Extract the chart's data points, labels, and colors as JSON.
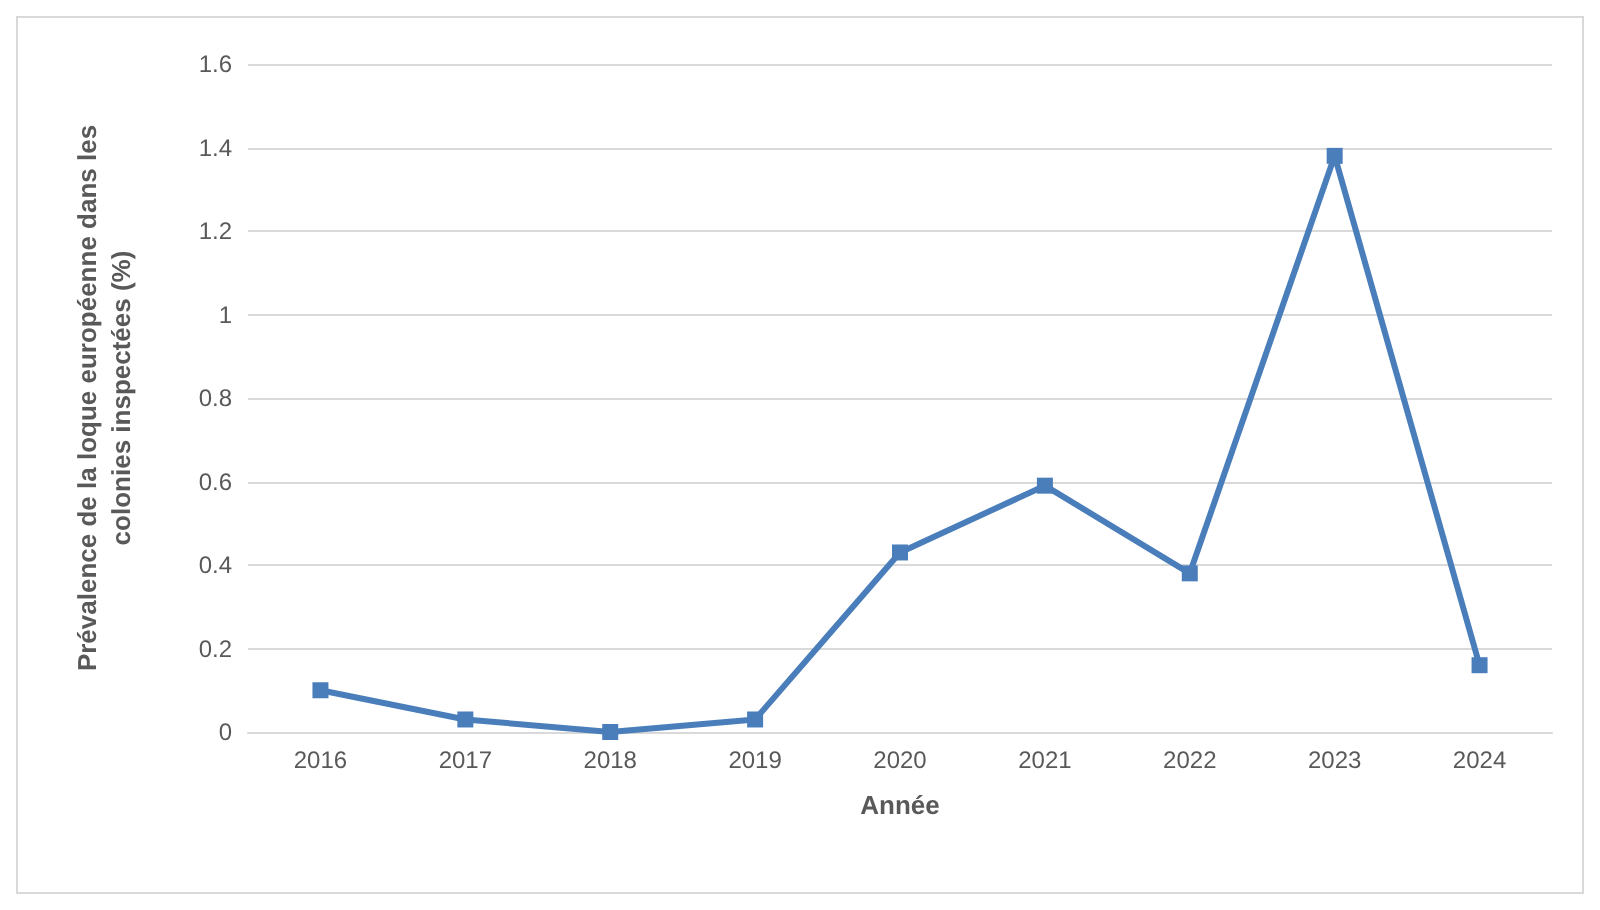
{
  "chart_data": {
    "type": "line",
    "xlabel": "Année",
    "ylabel": "Prévalence de la loque européenne dans les colonies inspectées (%)",
    "categories": [
      "2016",
      "2017",
      "2018",
      "2019",
      "2020",
      "2021",
      "2022",
      "2023",
      "2024"
    ],
    "series": [
      {
        "color": "#4a7ebb",
        "values": [
          0.1,
          0.03,
          0,
          0.03,
          0.43,
          0.59,
          0.38,
          1.38,
          0.16
        ]
      }
    ],
    "ylim": [
      0,
      1.6
    ],
    "yticks": [
      0,
      0.2,
      0.4,
      0.6,
      0.8,
      1,
      1.2,
      1.4,
      1.6
    ],
    "grid": "y",
    "marker": "square",
    "line_style": "solid"
  }
}
